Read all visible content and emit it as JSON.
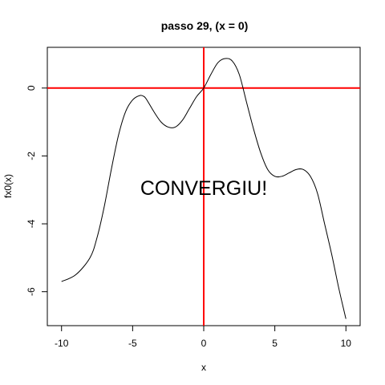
{
  "chart_data": {
    "type": "line",
    "title": "passo 29, (x = 0)",
    "xlabel": "x",
    "ylabel": "fx0(x)",
    "annotation": "CONVERGIU!",
    "xlim": [
      -11,
      11
    ],
    "ylim": [
      -7.0,
      1.2
    ],
    "x_ticks": [
      -10,
      -5,
      0,
      5,
      10
    ],
    "y_ticks": [
      -6,
      -4,
      -2,
      0
    ],
    "x_tick_labels": [
      "-10",
      "-5",
      "0",
      "5",
      "10"
    ],
    "y_tick_labels": [
      "-6",
      "-4",
      "-2",
      "0"
    ],
    "grid": false,
    "reference_lines": {
      "vertical_x": 0,
      "horizontal_y": 0,
      "color": "#ff0000"
    },
    "line_color": "#000000",
    "series": [
      {
        "x": [
          -10,
          -9,
          -8,
          -7.5,
          -7,
          -6.5,
          -6,
          -5.5,
          -5,
          -4.5,
          -4.2,
          -4,
          -3.5,
          -3,
          -2.5,
          -2,
          -1.5,
          -1,
          -0.5,
          0,
          0.5,
          1,
          1.5,
          2,
          2.5,
          3,
          3.5,
          4,
          4.5,
          5,
          5.5,
          6,
          6.5,
          7,
          7.5,
          8,
          8.5,
          9,
          9.5,
          10
        ],
        "y": [
          -5.7,
          -5.5,
          -5.0,
          -4.4,
          -3.5,
          -2.4,
          -1.4,
          -0.7,
          -0.35,
          -0.22,
          -0.25,
          -0.35,
          -0.7,
          -1.0,
          -1.15,
          -1.15,
          -0.95,
          -0.6,
          -0.25,
          0.0,
          0.4,
          0.75,
          0.87,
          0.8,
          0.4,
          -0.4,
          -1.2,
          -1.9,
          -2.4,
          -2.6,
          -2.6,
          -2.5,
          -2.4,
          -2.4,
          -2.6,
          -3.1,
          -4.0,
          -4.9,
          -5.9,
          -6.8
        ]
      }
    ]
  }
}
